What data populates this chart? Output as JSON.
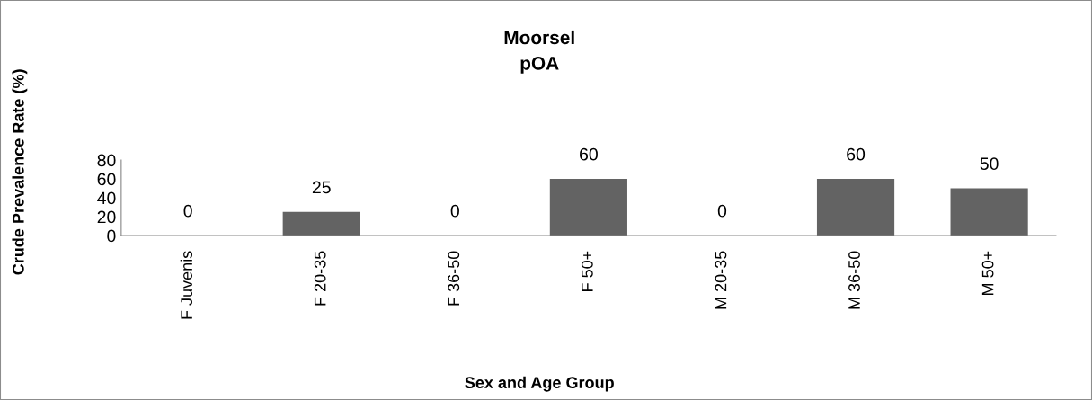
{
  "chart_data": {
    "type": "bar",
    "title": "Moorsel\npOA",
    "xlabel": "Sex and Age Group",
    "ylabel": "Crude Prevalence Rate (%)",
    "categories": [
      "F Juvenis",
      "F 20-35",
      "F 36-50",
      "F 50+",
      "M 20-35",
      "M 36-50",
      "M 50+"
    ],
    "values": [
      0,
      25,
      0,
      60,
      0,
      60,
      50
    ],
    "color": "#636363",
    "ylim": [
      0,
      80
    ],
    "yticks": [
      0,
      20,
      40,
      60,
      80
    ],
    "grid": false,
    "legend": false,
    "data_labels": true
  }
}
